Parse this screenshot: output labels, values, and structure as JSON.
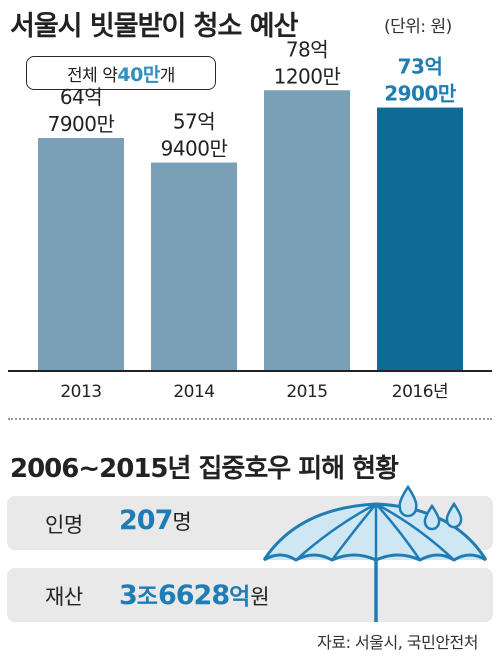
{
  "title": "서울시 빗물받이 청소 예산",
  "unit": "(단위: 원)",
  "note": {
    "prefix": "전체 약 ",
    "highlight": "40만",
    "suffix": "개"
  },
  "chart_data": {
    "type": "bar",
    "title": "서울시 빗물받이 청소 예산",
    "unit": "원",
    "categories": [
      "2013",
      "2014",
      "2015",
      "2016년"
    ],
    "values": [
      6479000000,
      5794000000,
      7812000000,
      7329000000
    ],
    "value_labels": [
      [
        "64억",
        "7900만"
      ],
      [
        "57억",
        "9400만"
      ],
      [
        "78억",
        "1200만"
      ],
      [
        "73억",
        "2900만"
      ]
    ],
    "highlight_index": 3,
    "colors": {
      "bar": "#7aa0b8",
      "bar_highlight": "#0f6a96",
      "label": "#222222",
      "label_highlight": "#1f7db5",
      "axis": "#222222"
    }
  },
  "section2": {
    "title": "2006~2015년 집중호우 피해 현황",
    "rows": [
      {
        "label": "인명",
        "value": "207",
        "suffix": "명"
      },
      {
        "label": "재산",
        "value_parts": [
          "3",
          "조",
          "6628",
          "억",
          "원"
        ]
      }
    ]
  },
  "source": "자료: 서울시, 국민안전처",
  "icons": [
    "umbrella-icon",
    "raindrop-icon"
  ]
}
